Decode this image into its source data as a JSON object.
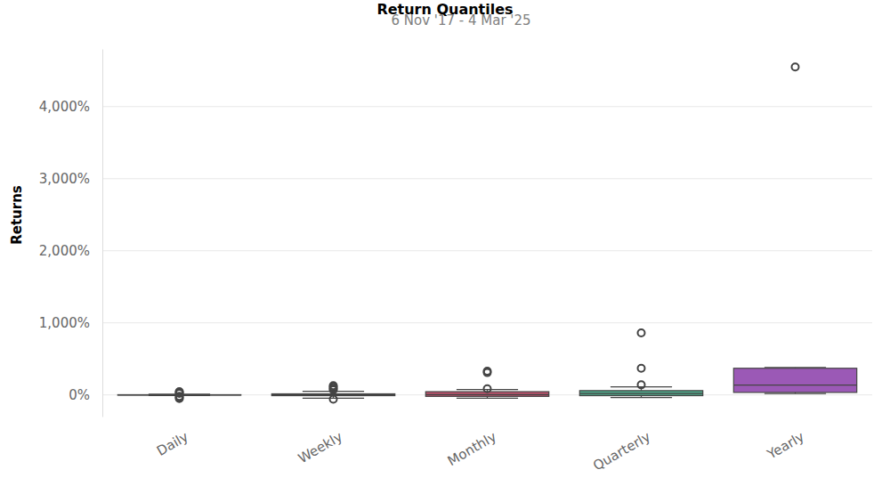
{
  "chart_data": {
    "type": "box",
    "title": "Return Quantiles",
    "subtitle": "6 Nov '17 -  4 Mar '25",
    "y_label": "Returns",
    "categories": [
      "Daily",
      "Weekly",
      "Monthly",
      "Quarterly",
      "Yearly"
    ],
    "colors": [
      "#FEDD78",
      "#348DC1",
      "#BA516B",
      "#4FA487",
      "#9B59B6"
    ],
    "boxes": [
      {
        "whisker_low": -10,
        "q1": -3,
        "median": 0,
        "q3": 3,
        "whisker_high": 10,
        "outliers": [
          -50,
          -35,
          -20,
          20,
          35,
          45
        ]
      },
      {
        "whisker_low": -45,
        "q1": -10,
        "median": 2,
        "q3": 15,
        "whisker_high": 50,
        "outliers": [
          -60,
          70,
          90,
          110,
          130
        ]
      },
      {
        "whisker_low": -45,
        "q1": -20,
        "median": 5,
        "q3": 45,
        "whisker_high": 74,
        "outliers": [
          85,
          310,
          330
        ]
      },
      {
        "whisker_low": -35,
        "q1": -10,
        "median": 20,
        "q3": 60,
        "whisker_high": 111,
        "outliers": [
          140,
          370,
          860
        ]
      },
      {
        "whisker_low": 20,
        "q1": 35,
        "median": 136,
        "q3": 370,
        "whisker_high": 380,
        "outliers": [
          4550
        ]
      }
    ],
    "ylim": [
      -300,
      4800
    ],
    "yticks": [
      {
        "value": 0,
        "label": "0%"
      },
      {
        "value": 1000,
        "label": "1,000%"
      },
      {
        "value": 2000,
        "label": "2,000%"
      },
      {
        "value": 3000,
        "label": "3,000%"
      },
      {
        "value": 4000,
        "label": "4,000%"
      }
    ],
    "grid": true
  }
}
